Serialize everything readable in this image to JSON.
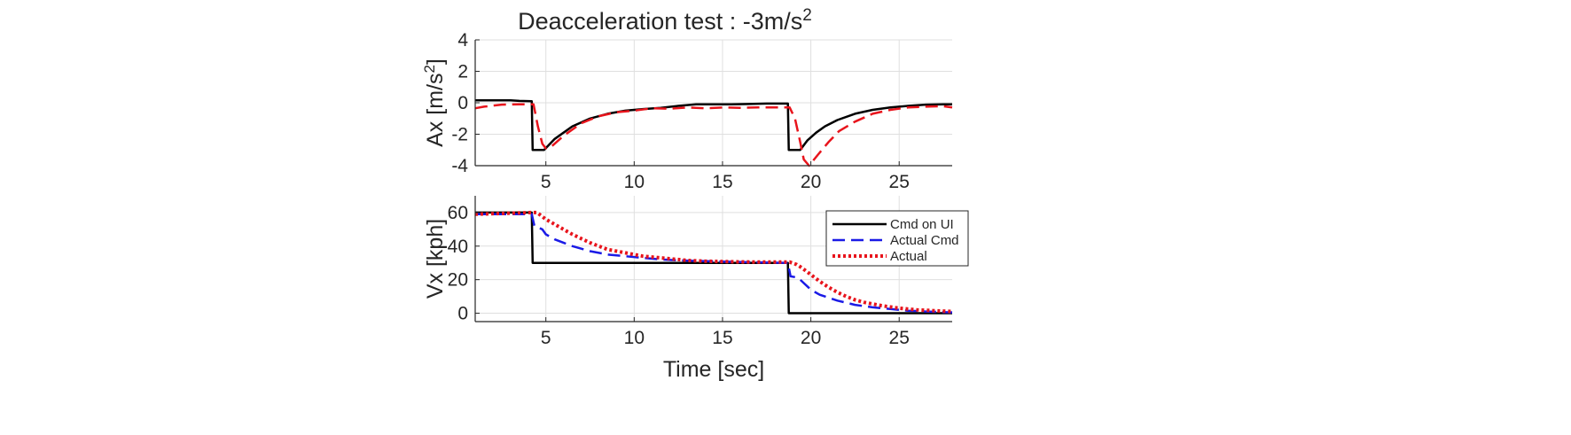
{
  "figure_title": "Deacceleration test : -3m/s",
  "figure_title_sup": "2",
  "chart_data": [
    {
      "type": "line",
      "title": "Deacceleration test : -3m/s^2",
      "ylabel_main": "Ax [m/s",
      "ylabel_sup": "2",
      "ylabel_end": "]",
      "xlabel": "",
      "xlim": [
        1,
        28
      ],
      "ylim": [
        -4,
        4
      ],
      "xticks": [
        5,
        10,
        15,
        20,
        25
      ],
      "yticks": [
        -4,
        -2,
        0,
        2,
        4
      ],
      "grid": true,
      "series": [
        {
          "color": "#000000",
          "style": "solid",
          "x": [
            1,
            2,
            3,
            3.5,
            4.2,
            4.25,
            4.9,
            5.5,
            6.5,
            7.5,
            8.5,
            9.5,
            10.5,
            11.5,
            12.5,
            13.5,
            14.5,
            15.5,
            16.5,
            17.5,
            18.3,
            18.7,
            18.75,
            19.4,
            19.8,
            20.3,
            20.8,
            21.5,
            22.5,
            23.5,
            24.5,
            25.5,
            26.5,
            27.5,
            28
          ],
          "y": [
            0.15,
            0.15,
            0.15,
            0.12,
            0.1,
            -3.0,
            -3.0,
            -2.3,
            -1.5,
            -1.0,
            -0.7,
            -0.5,
            -0.4,
            -0.32,
            -0.2,
            -0.1,
            -0.1,
            -0.1,
            -0.08,
            -0.05,
            -0.05,
            -0.05,
            -3.0,
            -3.0,
            -2.4,
            -1.9,
            -1.5,
            -1.1,
            -0.7,
            -0.45,
            -0.3,
            -0.2,
            -0.12,
            -0.1,
            -0.1
          ]
        },
        {
          "color": "#e8141c",
          "style": "dashed",
          "x": [
            1,
            1.5,
            2.5,
            3.5,
            4.3,
            4.55,
            4.8,
            5.0,
            5.3,
            6.0,
            7.0,
            8.0,
            9.0,
            10.0,
            11.0,
            12.0,
            13.0,
            14.0,
            15.0,
            16.0,
            17.0,
            18.0,
            18.8,
            19.1,
            19.4,
            19.6,
            19.9,
            20.4,
            21.0,
            21.6,
            22.5,
            23.5,
            24.5,
            25.5,
            26.5,
            27.5,
            28
          ],
          "y": [
            -0.35,
            -0.25,
            -0.12,
            -0.1,
            -0.1,
            -1.5,
            -2.6,
            -2.9,
            -2.8,
            -2.1,
            -1.3,
            -0.85,
            -0.6,
            -0.5,
            -0.35,
            -0.38,
            -0.3,
            -0.35,
            -0.3,
            -0.32,
            -0.3,
            -0.3,
            -0.3,
            -1.0,
            -2.5,
            -3.6,
            -4.0,
            -3.3,
            -2.5,
            -1.8,
            -1.2,
            -0.7,
            -0.45,
            -0.3,
            -0.25,
            -0.22,
            -0.3
          ]
        }
      ]
    },
    {
      "type": "line",
      "ylabel": "Vx [kph]",
      "xlabel": "Time [sec]",
      "xlim": [
        1,
        28
      ],
      "ylim": [
        -5,
        70
      ],
      "xticks": [
        5,
        10,
        15,
        20,
        25
      ],
      "yticks": [
        0,
        20,
        40,
        60
      ],
      "grid": true,
      "legend_position": "top-right",
      "series": [
        {
          "name": "Cmd on UI",
          "color": "#000000",
          "style": "solid",
          "x": [
            1,
            4.2,
            4.25,
            18.7,
            18.75,
            28
          ],
          "y": [
            60,
            60,
            30,
            30,
            0,
            0
          ]
        },
        {
          "name": "Actual Cmd",
          "color": "#1a1ae6",
          "style": "dashed",
          "x": [
            1,
            4.2,
            4.35,
            4.6,
            4.8,
            5.0,
            5.5,
            6.5,
            7.5,
            8.5,
            9.5,
            10.5,
            11.5,
            12.5,
            14.0,
            16.0,
            18.7,
            18.85,
            19.1,
            19.3,
            19.6,
            20.0,
            20.5,
            21.5,
            22.5,
            23.5,
            24.5,
            25.5,
            26.5,
            28
          ],
          "y": [
            59,
            59,
            52,
            51,
            50,
            47,
            44,
            40,
            37,
            35,
            34,
            33,
            32,
            31.5,
            31,
            30.5,
            30,
            22,
            21.5,
            21,
            18,
            14,
            11,
            7.5,
            5,
            3.5,
            2.5,
            1.5,
            1,
            0.5
          ]
        },
        {
          "name": "Actual",
          "color": "#e8141c",
          "style": "dotted",
          "x": [
            1,
            4.2,
            4.5,
            5.0,
            5.5,
            6.0,
            6.5,
            7.0,
            7.5,
            8.0,
            8.5,
            9.0,
            9.5,
            10.0,
            10.5,
            11.0,
            12.0,
            13.0,
            14.0,
            15.0,
            16.0,
            17.0,
            18.0,
            18.8,
            19.2,
            19.5,
            20.0,
            20.5,
            21.0,
            21.5,
            22.0,
            22.5,
            23.0,
            24.0,
            25.0,
            26.0,
            27.0,
            28
          ],
          "y": [
            59,
            60,
            60,
            56,
            53,
            50,
            47,
            44.5,
            42,
            40,
            38,
            37,
            36,
            35,
            34,
            33.5,
            32.5,
            31.5,
            31,
            30.8,
            30.6,
            30.5,
            30.5,
            30.5,
            29,
            27,
            23,
            19,
            15.5,
            12.5,
            10,
            8,
            6.5,
            4.5,
            3,
            2,
            1.5,
            1
          ]
        }
      ]
    }
  ]
}
